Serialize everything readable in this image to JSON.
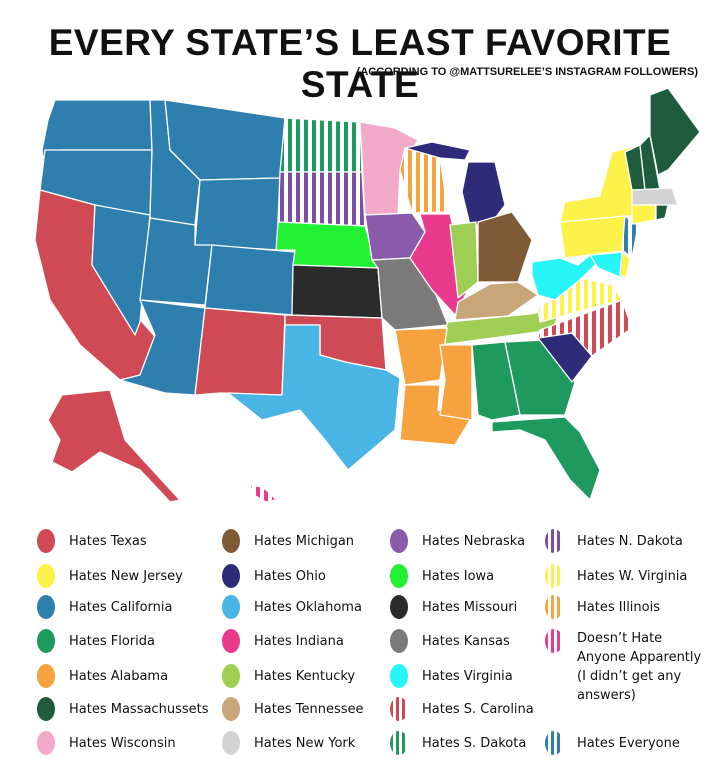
{
  "title": "EVERY STATE’S LEAST FAVORITE STATE",
  "subtitle": "(ACCORDING TO @MATTSURELEE’S INSTAGRAM FOLLOWERS)",
  "legend": [
    {
      "id": "texas",
      "label": "Hates Texas",
      "color": "#cf4a55",
      "pattern": "solid"
    },
    {
      "id": "newjersey",
      "label": "Hates New Jersey",
      "color": "#fdf24a",
      "pattern": "solid"
    },
    {
      "id": "california",
      "label": "Hates California",
      "color": "#2f7fae",
      "pattern": "solid"
    },
    {
      "id": "florida",
      "label": "Hates Florida",
      "color": "#1e9a5e",
      "pattern": "solid"
    },
    {
      "id": "alabama",
      "label": "Hates Alabama",
      "color": "#f6a23e",
      "pattern": "solid"
    },
    {
      "id": "massachussets",
      "label": "Hates Massachussets",
      "color": "#1f5b3f",
      "pattern": "solid"
    },
    {
      "id": "wisconsin",
      "label": "Hates Wisconsin",
      "color": "#f2aac8",
      "pattern": "solid"
    },
    {
      "id": "michigan",
      "label": "Hates Michigan",
      "color": "#7f5a37",
      "pattern": "solid"
    },
    {
      "id": "ohio",
      "label": "Hates Ohio",
      "color": "#2f2b78",
      "pattern": "solid"
    },
    {
      "id": "oklahoma",
      "label": "Hates Oklahoma",
      "color": "#48b5e4",
      "pattern": "solid"
    },
    {
      "id": "indiana",
      "label": "Hates Indiana",
      "color": "#ea3a8e",
      "pattern": "solid"
    },
    {
      "id": "kentucky",
      "label": "Hates Kentucky",
      "color": "#9fce55",
      "pattern": "solid"
    },
    {
      "id": "tennessee",
      "label": "Hates Tennessee",
      "color": "#c9a57a",
      "pattern": "solid"
    },
    {
      "id": "newyork",
      "label": "Hates New York",
      "color": "#d3d3d3",
      "pattern": "solid"
    },
    {
      "id": "nebraska",
      "label": "Hates Nebraska",
      "color": "#8a5aab",
      "pattern": "solid"
    },
    {
      "id": "iowa",
      "label": "Hates Iowa",
      "color": "#22f033",
      "pattern": "solid"
    },
    {
      "id": "missouri",
      "label": "Hates Missouri",
      "color": "#2b2b2b",
      "pattern": "solid"
    },
    {
      "id": "kansas",
      "label": "Hates Kansas",
      "color": "#7a7a7a",
      "pattern": "solid"
    },
    {
      "id": "virginia",
      "label": "Hates Virginia",
      "color": "#26f5f8",
      "pattern": "solid"
    },
    {
      "id": "scarolina",
      "label": "Hates S. Carolina",
      "color": "#cf4a55",
      "pattern": "stripes"
    },
    {
      "id": "sdakota",
      "label": "Hates S. Dakota",
      "color": "#1e9a5e",
      "pattern": "stripes"
    },
    {
      "id": "ndakota",
      "label": "Hates N. Dakota",
      "color": "#7b4fa3",
      "pattern": "stripes"
    },
    {
      "id": "wvirginia",
      "label": "Hates W. Virginia",
      "color": "#fdf24a",
      "pattern": "stripes"
    },
    {
      "id": "illinois",
      "label": "Hates Illinois",
      "color": "#f6a23e",
      "pattern": "stripes"
    },
    {
      "id": "none",
      "label": "Doesn’t Hate Anyone Apparently (I didn’t get any answers)",
      "color": "#ea3a8e",
      "pattern": "stripes"
    },
    {
      "id": "everyone",
      "label": "Hates Everyone",
      "color": "#2f7fae",
      "pattern": "stripes"
    }
  ]
}
